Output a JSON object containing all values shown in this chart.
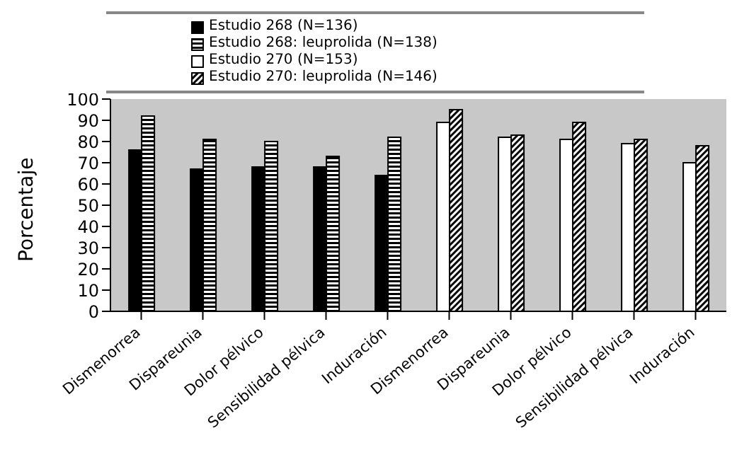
{
  "chart_data": {
    "type": "bar",
    "ylabel": "Porcentaje",
    "categories": [
      "Dismenorrea",
      "Dispareunia",
      "Dolor pélvico",
      "Sensibilidad pélvica",
      "Induración",
      "Dismenorrea",
      "Dispareunia",
      "Dolor pélvico",
      "Sensibilidad pélvica",
      "Induración"
    ],
    "series": [
      {
        "name": "Estudio 268 (N=136)",
        "color": "#000000",
        "values": [
          76,
          67,
          68,
          68,
          64,
          null,
          null,
          null,
          null,
          null
        ]
      },
      {
        "name": "Estudio 268: leuprolida (N=138)",
        "color": "#000000",
        "values": [
          92,
          81,
          80,
          73,
          82,
          null,
          null,
          null,
          null,
          null
        ]
      },
      {
        "name": "Estudio 270 (N=153)",
        "color": "#ffffff",
        "values": [
          null,
          null,
          null,
          null,
          null,
          89,
          82,
          81,
          79,
          70
        ]
      },
      {
        "name": "Estudio 270: leuprolida (N=146)",
        "color": "#000000",
        "values": [
          null,
          null,
          null,
          null,
          null,
          95,
          83,
          89,
          81,
          78
        ]
      }
    ],
    "ylim": [
      0,
      100
    ],
    "yticks": [
      0,
      10,
      20,
      30,
      40,
      50,
      60,
      70,
      80,
      90,
      100
    ],
    "legend": "top"
  }
}
